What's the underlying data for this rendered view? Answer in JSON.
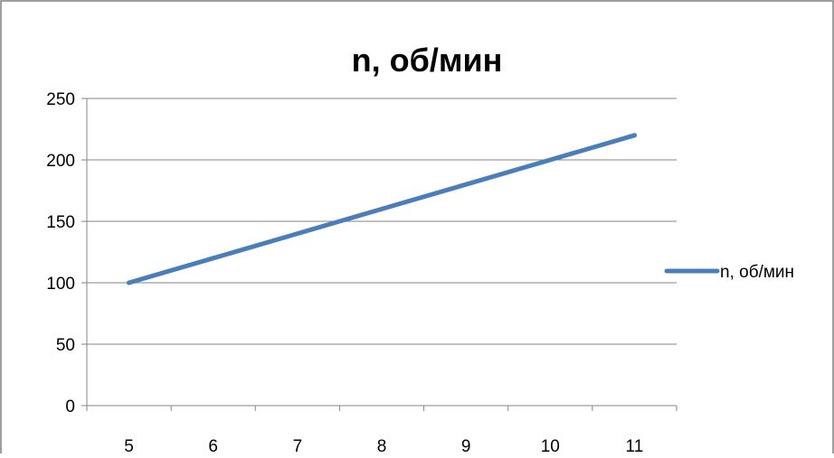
{
  "chart_data": {
    "type": "line",
    "title": "n, об/мин",
    "xlabel": "",
    "ylabel": "",
    "categories": [
      "5",
      "6",
      "7",
      "8",
      "9",
      "10",
      "11"
    ],
    "x": [
      5,
      6,
      7,
      8,
      9,
      10,
      11
    ],
    "series": [
      {
        "name": "n, об/мин",
        "values": [
          100,
          120,
          140,
          160,
          180,
          200,
          220
        ],
        "color": "#4a7ebb"
      }
    ],
    "ylim": [
      0,
      250
    ],
    "yticks": [
      0,
      50,
      100,
      150,
      200,
      250
    ],
    "grid": "horizontal",
    "legend": "right",
    "colors": {
      "border": "#7f7f7f",
      "grid": "#868686"
    }
  }
}
